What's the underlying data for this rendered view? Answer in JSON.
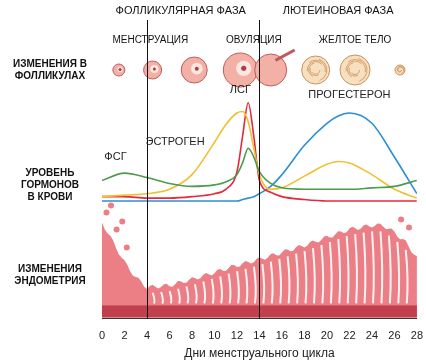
{
  "chart_data": {
    "type": "line",
    "phases": [
      "ФОЛЛИКУЛЯРНАЯ ФАЗА",
      "ЛЮТЕИНОВАЯ ФАЗА"
    ],
    "stages": [
      "МЕНСТРУАЦИЯ",
      "ОВУЛЯЦИЯ",
      "ЖЕЛТОЕ ТЕЛО"
    ],
    "row_labels": [
      [
        "ИЗМЕНЕНИЯ В",
        "ФОЛЛИКУЛАХ"
      ],
      [
        "УРОВЕНЬ",
        "ГОРМОНОВ",
        "В КРОВИ"
      ],
      [
        "ИЗМЕНЕНИЯ",
        "ЭНДОМЕТРИЯ"
      ]
    ],
    "x_label": "Дни менструального цикла",
    "phase_boundaries": [
      4,
      14
    ],
    "x": [
      0,
      2,
      4,
      6,
      8,
      10,
      11,
      12,
      12.5,
      13,
      13.5,
      14,
      15,
      16,
      18,
      20,
      21,
      22,
      24,
      26,
      28
    ],
    "series": [
      {
        "name": "ФСГ",
        "color": "#4e9a4e",
        "values": [
          47,
          49.5,
          48,
          46,
          45,
          45.5,
          46.5,
          49,
          53,
          58,
          55,
          50,
          46,
          44.5,
          44,
          44,
          44,
          44,
          44.5,
          45,
          47
        ]
      },
      {
        "name": "ЭСТРОГЕН",
        "color": "#f0c030",
        "values": [
          41.5,
          42,
          42.5,
          44,
          49,
          60,
          66,
          70,
          70.5,
          67,
          58,
          49,
          44,
          44.5,
          48.5,
          52.5,
          53.5,
          53,
          49,
          44,
          41
        ]
      },
      {
        "name": "ЛСГ",
        "color": "#e8283c",
        "values": [
          41.5,
          41.5,
          41,
          41,
          41.5,
          42.5,
          44,
          50,
          62,
          73.5,
          62,
          47,
          43,
          41.5,
          40.5,
          40,
          40,
          40,
          40,
          40,
          40
        ]
      },
      {
        "name": "ПРОГЕСТЕРОН",
        "color": "#2b8fd8",
        "values": [
          40,
          40,
          40,
          40,
          40,
          40,
          40,
          40,
          40.5,
          41,
          41.5,
          42.5,
          45,
          49,
          59,
          66.5,
          69,
          70,
          66.5,
          55,
          42.5
        ]
      }
    ],
    "xlim": [
      0,
      28
    ],
    "xticks": [
      0,
      2,
      4,
      6,
      8,
      10,
      12,
      14,
      16,
      18,
      20,
      22,
      24,
      26,
      28
    ],
    "ylim": [
      0,
      100
    ],
    "tick_labels": "x",
    "grid": false
  }
}
